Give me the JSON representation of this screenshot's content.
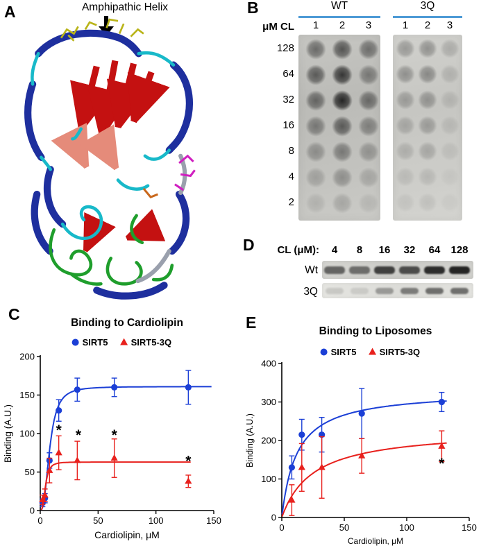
{
  "panels": {
    "a": {
      "letter": "A",
      "annotation": "Amphipathic Helix",
      "colors": {
        "helix_blue": "#1e2f9e",
        "sheet_red": "#c41111",
        "sheet_salmon": "#e58b7a",
        "loop_cyan": "#18b9c9",
        "loop_green": "#1f9e2c",
        "stick_yellow": "#b9b418",
        "stick_magenta": "#d01fc0",
        "stick_orange": "#c9681c",
        "coil_gray": "#9aa0ad"
      }
    },
    "b": {
      "letter": "B",
      "unit_label": "μM CL",
      "underline_color": "#4f9bd6",
      "groups": [
        {
          "label": "WT",
          "lanes": [
            "1",
            "2",
            "3"
          ]
        },
        {
          "label": "3Q",
          "lanes": [
            "1",
            "2",
            "3"
          ]
        }
      ],
      "concentrations": [
        "128",
        "64",
        "32",
        "16",
        "8",
        "4",
        "2"
      ],
      "wt_dot_intensity": [
        [
          0.5,
          0.62,
          0.48
        ],
        [
          0.58,
          0.78,
          0.42
        ],
        [
          0.52,
          0.88,
          0.5
        ],
        [
          0.42,
          0.58,
          0.38
        ],
        [
          0.3,
          0.42,
          0.28
        ],
        [
          0.2,
          0.3,
          0.18
        ],
        [
          0.12,
          0.18,
          0.1
        ]
      ],
      "q3_dot_intensity": [
        [
          0.28,
          0.32,
          0.18
        ],
        [
          0.32,
          0.36,
          0.14
        ],
        [
          0.26,
          0.3,
          0.12
        ],
        [
          0.2,
          0.26,
          0.1
        ],
        [
          0.16,
          0.2,
          0.08
        ],
        [
          0.1,
          0.12,
          0.05
        ],
        [
          0.07,
          0.09,
          0.04
        ]
      ]
    },
    "c": {
      "letter": "C"
    },
    "d": {
      "letter": "D",
      "header": "CL (μM):",
      "concentrations": [
        "4",
        "8",
        "16",
        "32",
        "64",
        "128"
      ],
      "rows": [
        {
          "label": "Wt",
          "band_intensity": [
            0.55,
            0.5,
            0.72,
            0.66,
            0.82,
            0.86
          ]
        },
        {
          "label": "3Q",
          "band_intensity": [
            0.12,
            0.1,
            0.32,
            0.46,
            0.52,
            0.52
          ]
        }
      ]
    },
    "e": {
      "letter": "E"
    }
  },
  "chart_data": [
    {
      "panel": "C",
      "type": "scatter",
      "title": "Binding to Cardiolipin",
      "xlabel": "Cardiolipin, μM",
      "ylabel": "Binding (A.U.)",
      "xlim": [
        0,
        150
      ],
      "ylim": [
        0,
        200
      ],
      "xticks": [
        0,
        50,
        100,
        150
      ],
      "yticks": [
        0,
        50,
        100,
        150,
        200
      ],
      "grid": false,
      "legend_position": "top-center",
      "series": [
        {
          "name": "SIRT5",
          "color": "#1b3fd6",
          "marker": "circle",
          "x": [
            2,
            4,
            8,
            16,
            32,
            64,
            128
          ],
          "y": [
            10,
            16,
            65,
            130,
            157,
            160,
            160
          ],
          "yerr": [
            5,
            6,
            10,
            14,
            15,
            12,
            22
          ],
          "fit": {
            "model": "hill",
            "bmax": 161,
            "k": 8.2,
            "n": 2.6,
            "xmax": 148
          }
        },
        {
          "name": "SIRT5-3Q",
          "color": "#e8211d",
          "marker": "triangle",
          "x": [
            2,
            4,
            8,
            16,
            32,
            64,
            128
          ],
          "y": [
            14,
            20,
            52,
            75,
            65,
            68,
            38
          ],
          "yerr": [
            6,
            8,
            16,
            22,
            25,
            25,
            8
          ],
          "fit": {
            "model": "hill",
            "bmax": 63,
            "k": 4.5,
            "n": 3,
            "xmax": 130
          }
        }
      ],
      "annotations": [
        {
          "x": 16,
          "y": 98,
          "text": "*"
        },
        {
          "x": 33,
          "y": 92,
          "text": "*"
        },
        {
          "x": 64,
          "y": 92,
          "text": "*"
        },
        {
          "x": 128,
          "y": 58,
          "text": "*"
        }
      ]
    },
    {
      "panel": "E",
      "type": "scatter",
      "title": "Binding to Liposomes",
      "xlabel": "Cardiolipin, μM",
      "ylabel": "Binding (A.U.)",
      "xlim": [
        0,
        150
      ],
      "ylim": [
        0,
        400
      ],
      "xticks": [
        0,
        50,
        100,
        150
      ],
      "yticks": [
        0,
        100,
        200,
        300,
        400
      ],
      "grid": false,
      "legend_position": "top-center",
      "series": [
        {
          "name": "SIRT5",
          "color": "#1b3fd6",
          "marker": "circle",
          "x": [
            8,
            16,
            32,
            64,
            128
          ],
          "y": [
            130,
            215,
            215,
            270,
            300
          ],
          "yerr": [
            30,
            40,
            45,
            65,
            25
          ],
          "fit": {
            "model": "hill",
            "bmax": 330,
            "k": 12,
            "n": 1,
            "xmax": 132
          }
        },
        {
          "name": "SIRT5-3Q",
          "color": "#e8211d",
          "marker": "triangle",
          "x": [
            8,
            16,
            32,
            64,
            128
          ],
          "y": [
            45,
            130,
            130,
            160,
            185
          ],
          "yerr": [
            40,
            62,
            80,
            45,
            40
          ],
          "fit": {
            "model": "hill",
            "bmax": 230,
            "k": 25,
            "n": 1,
            "xmax": 132
          }
        }
      ],
      "annotations": [
        {
          "x": 128,
          "y": 128,
          "text": "*"
        }
      ]
    }
  ]
}
